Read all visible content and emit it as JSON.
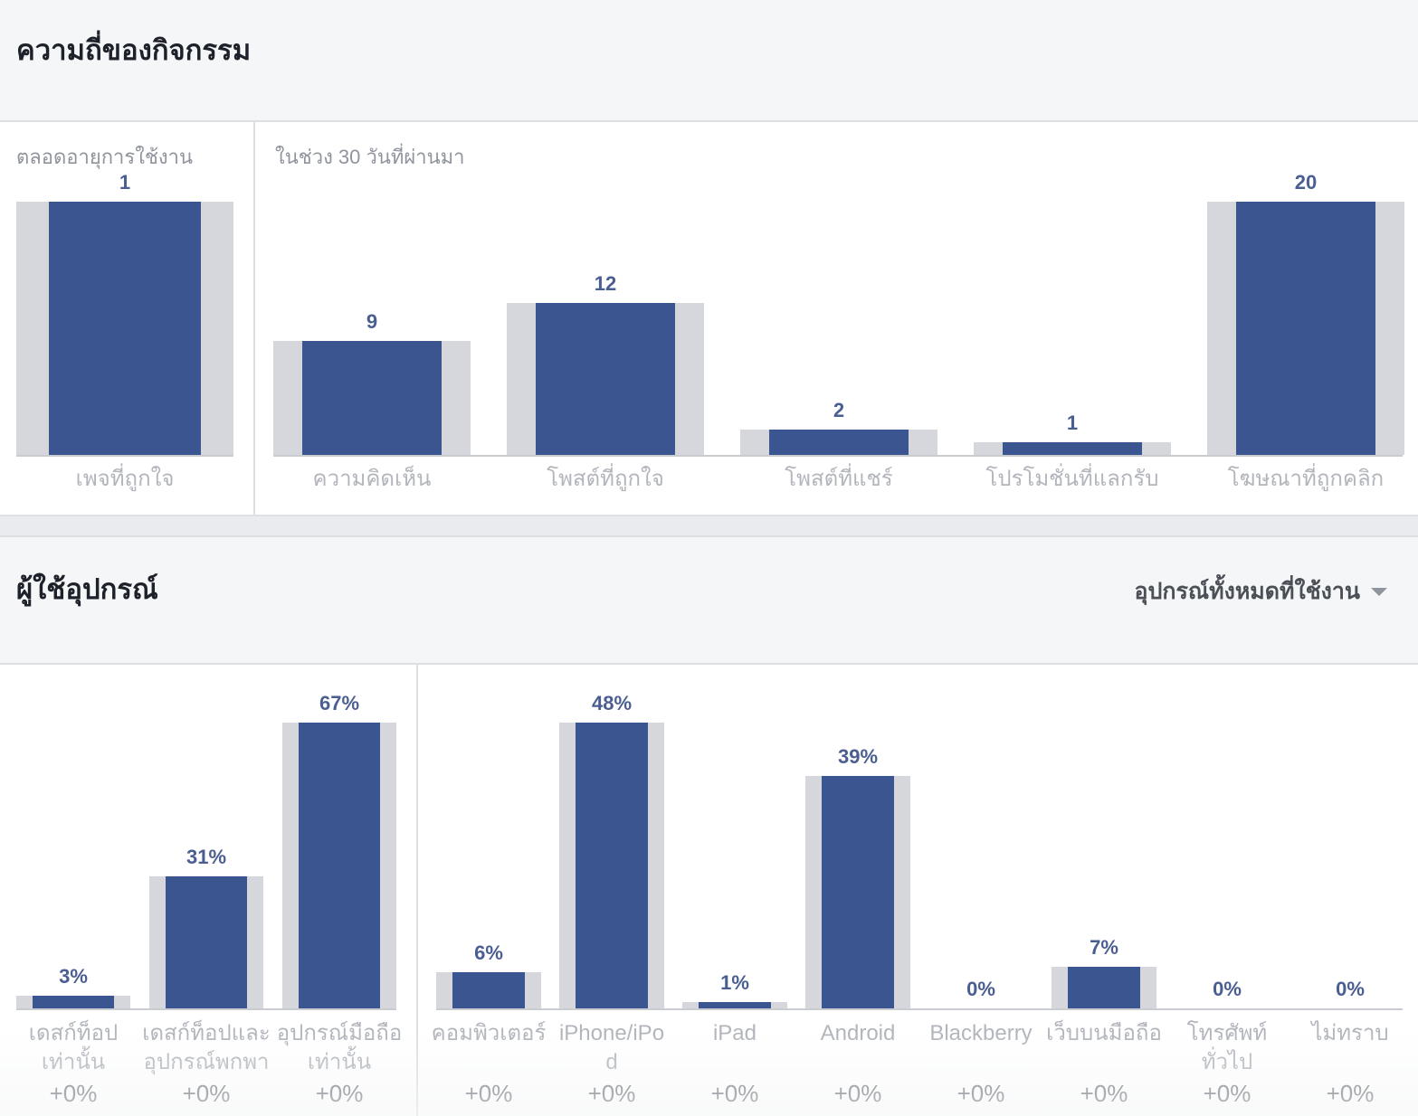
{
  "sections": {
    "activity_title": "ความถี่ของกิจกรรม",
    "lifetime_label": "ตลอดอายุการใช้งาน",
    "last30_label": "ในช่วง 30 วันที่ผ่านมา",
    "device_title": "ผู้ใช้อุปกรณ์",
    "device_filter": "อุปกรณ์ทั้งหมดที่ใช้งาน"
  },
  "colors": {
    "bar": "#3b5591",
    "track": "#d6d7dc",
    "value_label": "#4a5e91",
    "category_label": "#b2b5bc",
    "change_label": "#6f737a"
  },
  "chart_data": [
    {
      "type": "bar",
      "title": "ตลอดอายุการใช้งาน",
      "categories": [
        "เพจที่ถูกใจ"
      ],
      "values": [
        1
      ],
      "ylim": [
        0,
        1
      ]
    },
    {
      "type": "bar",
      "title": "ในช่วง 30 วันที่ผ่านมา",
      "categories": [
        "ความคิดเห็น",
        "โพสต์ที่ถูกใจ",
        "โพสต์ที่แชร์",
        "โปรโมชั่นที่แลกรับ",
        "โฆษณาที่ถูกคลิก"
      ],
      "values": [
        9,
        12,
        2,
        1,
        20
      ],
      "ylim": [
        0,
        20
      ]
    },
    {
      "type": "bar",
      "categories": [
        [
          "เดสก์ท็อป",
          "เท่านั้น"
        ],
        [
          "เดสก์ท็อปและ",
          "อุปกรณ์พกพา"
        ],
        [
          "อุปกรณ์มือถือ",
          "เท่านั้น"
        ]
      ],
      "values": [
        3,
        31,
        67
      ],
      "value_labels": [
        "3%",
        "31%",
        "67%"
      ],
      "changes": [
        "+0%",
        "+0%",
        "+0%"
      ],
      "ylim": [
        0,
        100
      ]
    },
    {
      "type": "bar",
      "categories": [
        [
          "คอมพิวเตอร์"
        ],
        [
          "iPhone/iPo",
          "d"
        ],
        [
          "iPad"
        ],
        [
          "Android"
        ],
        [
          "Blackberry"
        ],
        [
          "เว็บบนมือถือ"
        ],
        [
          "โทรศัพท์",
          "ทั่วไป"
        ],
        [
          "ไม่ทราบ"
        ]
      ],
      "values": [
        6,
        48,
        1,
        39,
        0,
        7,
        0,
        0
      ],
      "value_labels": [
        "6%",
        "48%",
        "1%",
        "39%",
        "0%",
        "7%",
        "0%",
        "0%"
      ],
      "changes": [
        "+0%",
        "+0%",
        "+0%",
        "+0%",
        "+0%",
        "+0%",
        "+0%",
        "+0%"
      ],
      "ylim": [
        0,
        100
      ]
    }
  ]
}
